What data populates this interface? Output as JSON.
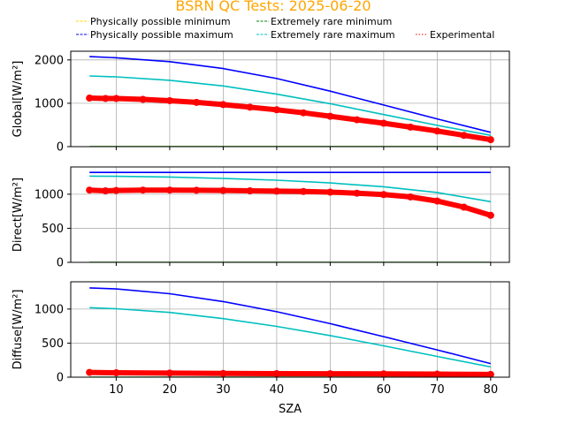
{
  "title": "BSRN QC Tests: 2025-06-20",
  "colors": {
    "title": "#FFA500",
    "phys_min": "#FFD700",
    "phys_max": "#0000FF",
    "rare_min": "#008000",
    "rare_max": "#00BFBF",
    "experimental": "#FF0000",
    "grid": "#b0b0b0"
  },
  "legend": [
    {
      "label": "Physically possible minimum",
      "key": "phys_min",
      "style": "dashed"
    },
    {
      "label": "Physically possible maximum",
      "key": "phys_max",
      "style": "dashed"
    },
    {
      "label": "Extremely rare minimum",
      "key": "rare_min",
      "style": "dashed"
    },
    {
      "label": "Extremely rare maximum",
      "key": "rare_max",
      "style": "dashed"
    },
    {
      "label": "Experimental",
      "key": "experimental",
      "style": "dotted"
    }
  ],
  "chart_data": [
    {
      "type": "line",
      "ylabel": "Global[W/m²]",
      "xlabel": "",
      "xlim": [
        1.5,
        83.5
      ],
      "ylim": [
        0,
        2200
      ],
      "xticks": [
        10,
        20,
        30,
        40,
        50,
        60,
        70,
        80
      ],
      "yticks": [
        0,
        1000,
        2000
      ],
      "grid": true,
      "series": [
        {
          "name": "Physically possible minimum",
          "key": "phys_min",
          "x": [
            5,
            80
          ],
          "y": [
            -4,
            -4
          ]
        },
        {
          "name": "Physically possible maximum",
          "key": "phys_max",
          "x": [
            5,
            10,
            20,
            30,
            40,
            50,
            60,
            70,
            80
          ],
          "y": [
            2075,
            2050,
            1960,
            1800,
            1570,
            1280,
            960,
            640,
            330
          ]
        },
        {
          "name": "Extremely rare minimum",
          "key": "rare_min",
          "x": [
            5,
            80
          ],
          "y": [
            0,
            0
          ]
        },
        {
          "name": "Extremely rare maximum",
          "key": "rare_max",
          "x": [
            5,
            10,
            20,
            30,
            40,
            50,
            60,
            70,
            80
          ],
          "y": [
            1630,
            1610,
            1530,
            1400,
            1210,
            990,
            740,
            490,
            260
          ]
        },
        {
          "name": "Experimental",
          "key": "experimental",
          "x": [
            5,
            8,
            10,
            15,
            20,
            25,
            30,
            35,
            40,
            45,
            50,
            55,
            60,
            65,
            70,
            75,
            80
          ],
          "y": [
            1120,
            1110,
            1110,
            1090,
            1060,
            1020,
            970,
            910,
            850,
            780,
            700,
            620,
            540,
            450,
            360,
            260,
            160
          ]
        }
      ]
    },
    {
      "type": "line",
      "ylabel": "Direct[W/m²]",
      "xlabel": "",
      "xlim": [
        1.5,
        83.5
      ],
      "ylim": [
        0,
        1400
      ],
      "xticks": [
        10,
        20,
        30,
        40,
        50,
        60,
        70,
        80
      ],
      "yticks": [
        0,
        500,
        1000
      ],
      "grid": true,
      "series": [
        {
          "name": "Physically possible minimum",
          "key": "phys_min",
          "x": [
            5,
            80
          ],
          "y": [
            -4,
            -4
          ]
        },
        {
          "name": "Physically possible maximum",
          "key": "phys_max",
          "x": [
            5,
            80
          ],
          "y": [
            1320,
            1320
          ]
        },
        {
          "name": "Extremely rare minimum",
          "key": "rare_min",
          "x": [
            5,
            80
          ],
          "y": [
            0,
            0
          ]
        },
        {
          "name": "Extremely rare maximum",
          "key": "rare_max",
          "x": [
            5,
            10,
            20,
            30,
            40,
            50,
            60,
            70,
            80
          ],
          "y": [
            1265,
            1262,
            1252,
            1232,
            1205,
            1165,
            1110,
            1025,
            890
          ]
        },
        {
          "name": "Experimental",
          "key": "experimental",
          "x": [
            5,
            8,
            10,
            15,
            20,
            25,
            30,
            35,
            40,
            45,
            50,
            55,
            60,
            65,
            70,
            75,
            80
          ],
          "y": [
            1060,
            1050,
            1055,
            1060,
            1060,
            1058,
            1055,
            1050,
            1045,
            1040,
            1030,
            1015,
            995,
            960,
            900,
            810,
            690
          ]
        }
      ]
    },
    {
      "type": "line",
      "ylabel": "Diffuse[W/m²]",
      "xlabel": "SZA",
      "xlim": [
        1.5,
        83.5
      ],
      "ylim": [
        0,
        1400
      ],
      "xticks": [
        10,
        20,
        30,
        40,
        50,
        60,
        70,
        80
      ],
      "yticks": [
        0,
        500,
        1000
      ],
      "grid": true,
      "series": [
        {
          "name": "Physically possible minimum",
          "key": "phys_min",
          "x": [
            5,
            80
          ],
          "y": [
            -4,
            -4
          ]
        },
        {
          "name": "Physically possible maximum",
          "key": "phys_max",
          "x": [
            5,
            10,
            20,
            30,
            40,
            50,
            60,
            70,
            80
          ],
          "y": [
            1310,
            1295,
            1225,
            1110,
            960,
            785,
            595,
            400,
            200
          ]
        },
        {
          "name": "Extremely rare minimum",
          "key": "rare_min",
          "x": [
            5,
            80
          ],
          "y": [
            0,
            0
          ]
        },
        {
          "name": "Extremely rare maximum",
          "key": "rare_max",
          "x": [
            5,
            10,
            20,
            30,
            40,
            50,
            60,
            70,
            80
          ],
          "y": [
            1020,
            1005,
            950,
            860,
            745,
            610,
            460,
            305,
            150
          ]
        },
        {
          "name": "Experimental",
          "key": "experimental",
          "x": [
            5,
            10,
            20,
            30,
            40,
            50,
            60,
            70,
            80
          ],
          "y": [
            70,
            65,
            60,
            55,
            52,
            50,
            48,
            45,
            40
          ]
        }
      ]
    }
  ]
}
